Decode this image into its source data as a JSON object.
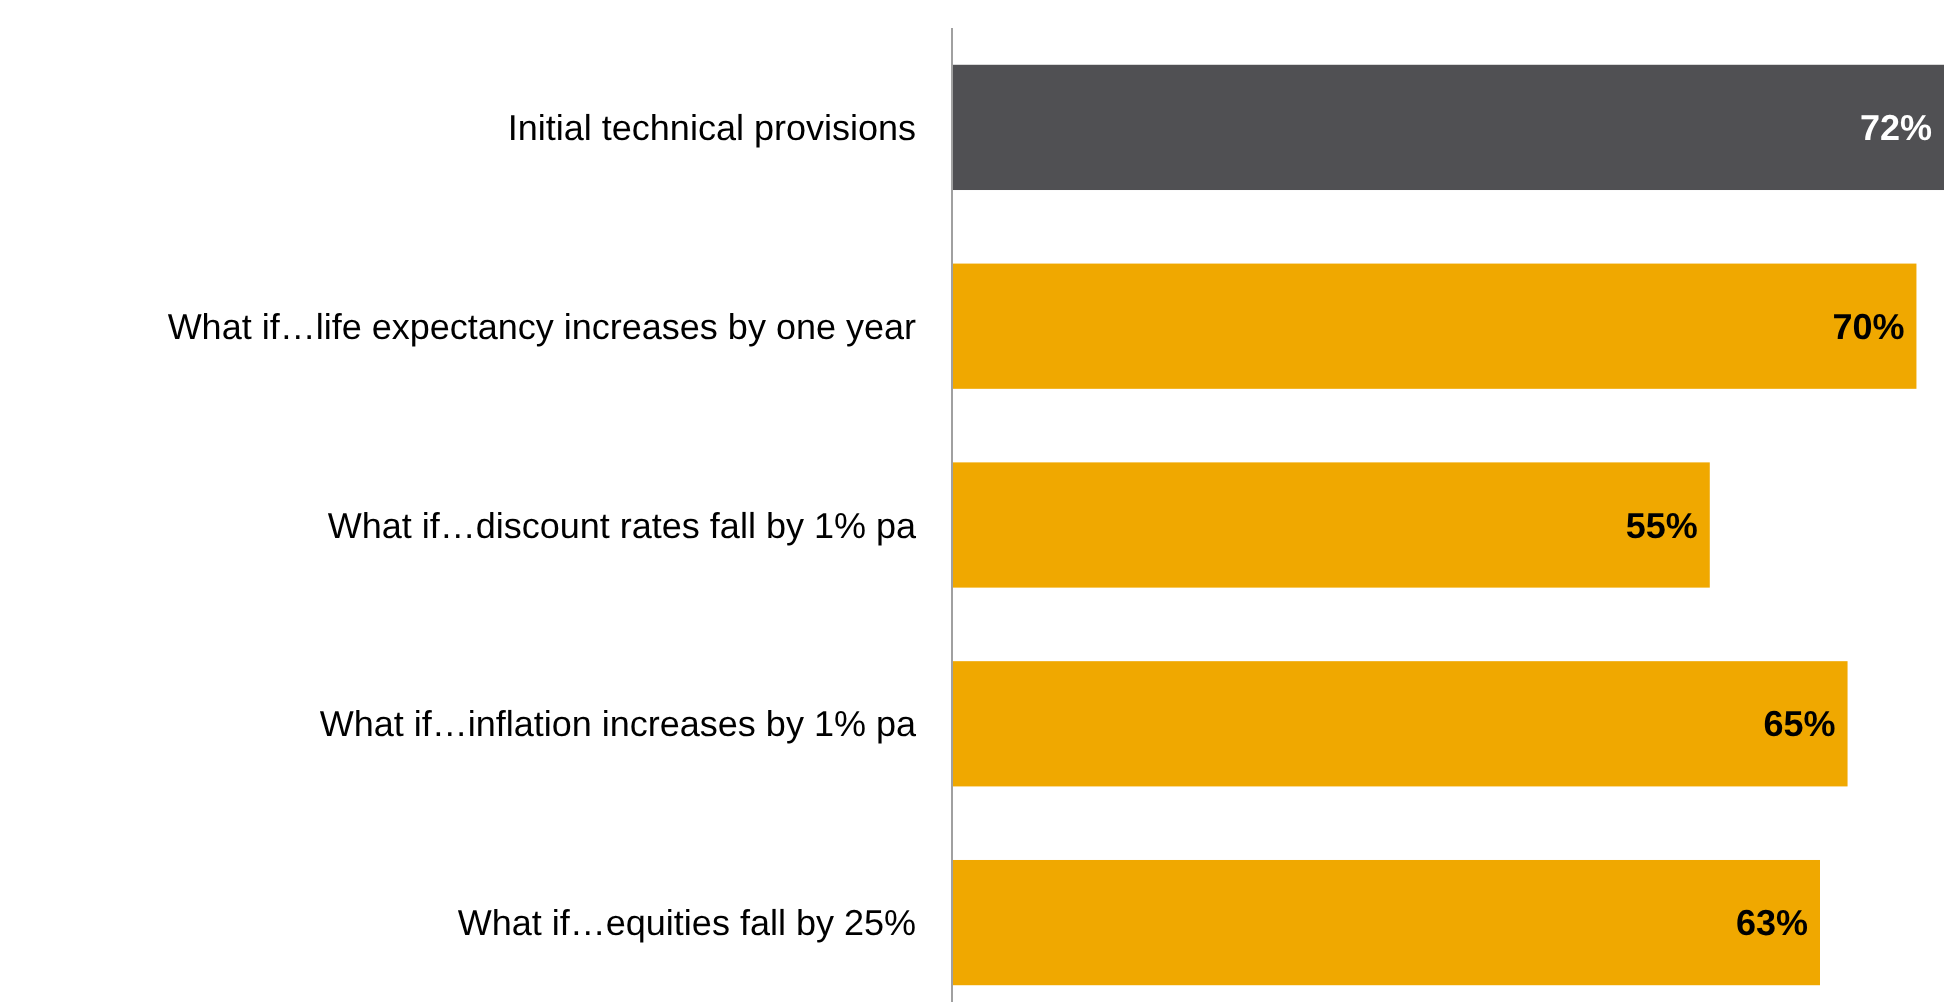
{
  "chart_data": {
    "type": "bar",
    "orientation": "horizontal",
    "categories": [
      "Initial technical provisions",
      "What if…life expectancy increases by one year",
      "What if…discount rates fall by 1% pa",
      "What if…inflation increases by 1% pa",
      "What if…equities fall by 25%"
    ],
    "values": [
      72,
      70,
      55,
      65,
      63
    ],
    "colors": [
      "#505053",
      "#f0a800",
      "#f0a800",
      "#f0a800",
      "#f0a800"
    ],
    "value_labels": [
      "72%",
      "70%",
      "55%",
      "65%",
      "63%"
    ]
  }
}
